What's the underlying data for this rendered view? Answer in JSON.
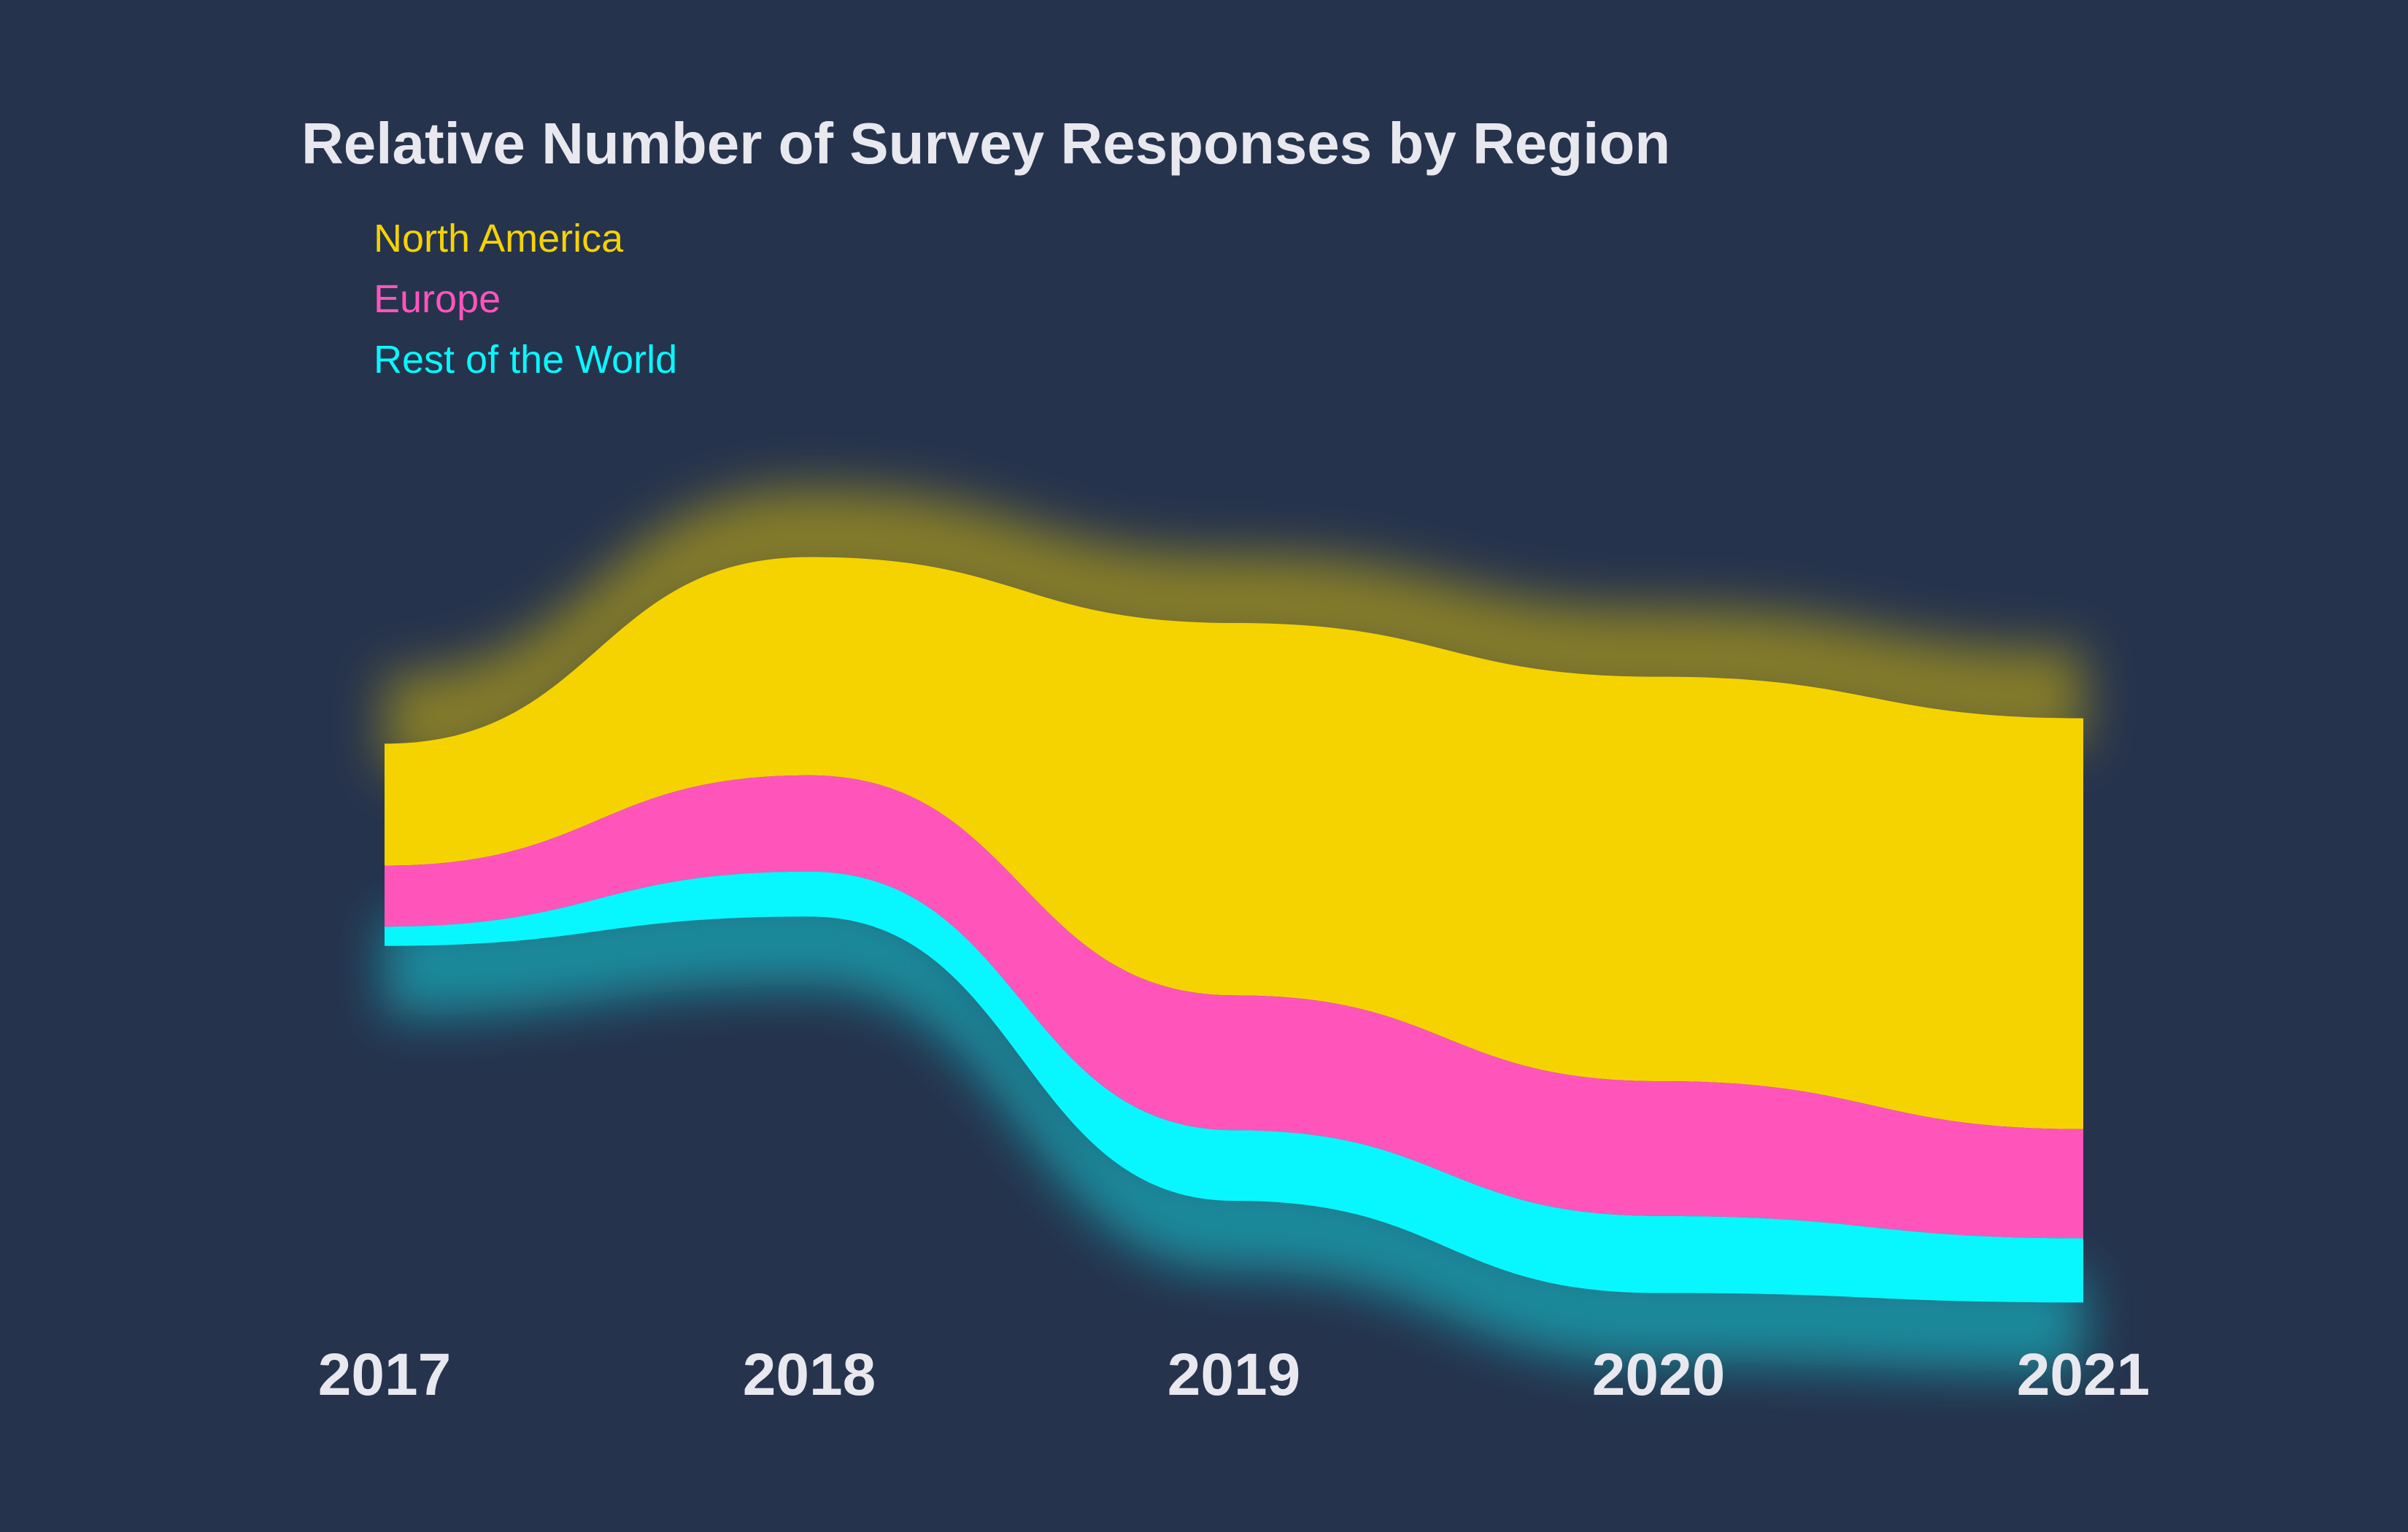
{
  "chart_data": {
    "type": "area",
    "subtype": "streamgraph",
    "title": "Relative Number of Survey Responses by Region",
    "xlabel": "",
    "ylabel": "",
    "x": [
      "2017",
      "2018",
      "2019",
      "2020",
      "2021"
    ],
    "legend_placement": "top-left",
    "grid": false,
    "series": [
      {
        "name": "North America",
        "color": "#f5d300",
        "values": [
          38,
          68,
          116,
          126,
          128
        ]
      },
      {
        "name": "Europe",
        "color": "#ff55bb",
        "values": [
          19,
          30,
          42,
          42,
          34
        ]
      },
      {
        "name": "Rest of the World",
        "color": "#08f7fe",
        "values": [
          6,
          14,
          22,
          24,
          20
        ]
      }
    ],
    "colors": {
      "background": "#26334d",
      "text": "#e8e8ee"
    }
  }
}
